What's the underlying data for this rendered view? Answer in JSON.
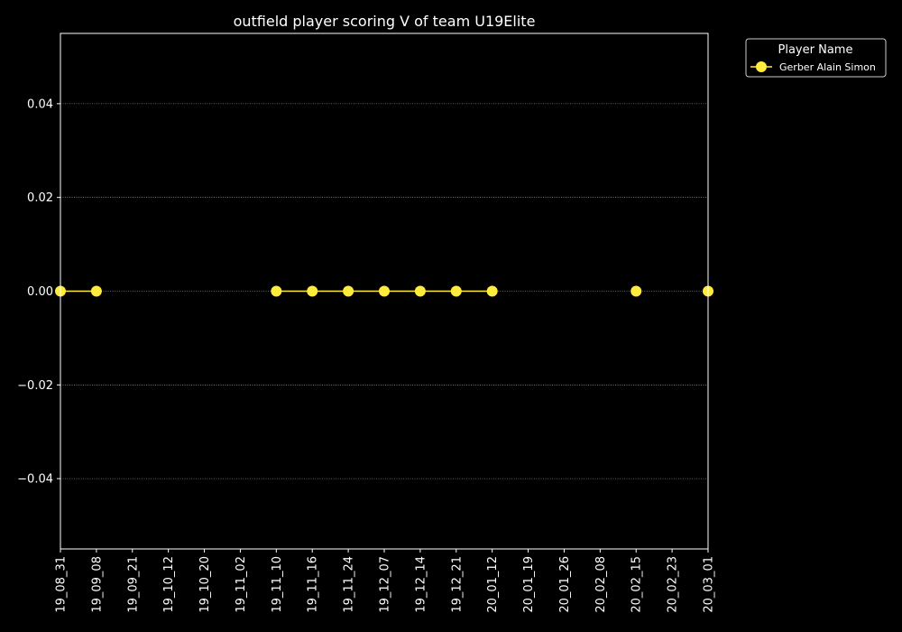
{
  "chart_data": {
    "type": "line",
    "title": "outfield player scoring V of team U19Elite",
    "xlabel": "",
    "ylabel": "",
    "categories": [
      "19_08_31",
      "19_09_08",
      "19_09_21",
      "19_10_12",
      "19_10_20",
      "19_11_02",
      "19_11_10",
      "19_11_16",
      "19_11_24",
      "19_12_07",
      "19_12_14",
      "19_12_21",
      "20_01_12",
      "20_01_19",
      "20_01_26",
      "20_02_08",
      "20_02_15",
      "20_02_23",
      "20_03_01"
    ],
    "ylim": [
      -0.055,
      0.055
    ],
    "yticks": [
      -0.04,
      -0.02,
      0.0,
      0.02,
      0.04
    ],
    "ytick_labels": [
      "−0.04",
      "−0.02",
      "0.00",
      "0.02",
      "0.04"
    ],
    "grid": "horizontal dotted",
    "legend": {
      "title": "Player Name",
      "placement": "outside-top-right"
    },
    "series": [
      {
        "name": "Gerber Alain Simon",
        "color": "#ffeb3b",
        "segments": [
          {
            "x": [
              "19_08_31",
              "19_09_08"
            ],
            "values": [
              0,
              0
            ]
          },
          {
            "x": [
              "19_11_10",
              "19_11_16",
              "19_11_24",
              "19_12_07",
              "19_12_14",
              "19_12_21",
              "20_01_12"
            ],
            "values": [
              0,
              0,
              0,
              0,
              0,
              0,
              0
            ]
          },
          {
            "x": [
              "20_02_15"
            ],
            "values": [
              0
            ]
          },
          {
            "x": [
              "20_03_01"
            ],
            "values": [
              0
            ]
          }
        ]
      }
    ]
  }
}
